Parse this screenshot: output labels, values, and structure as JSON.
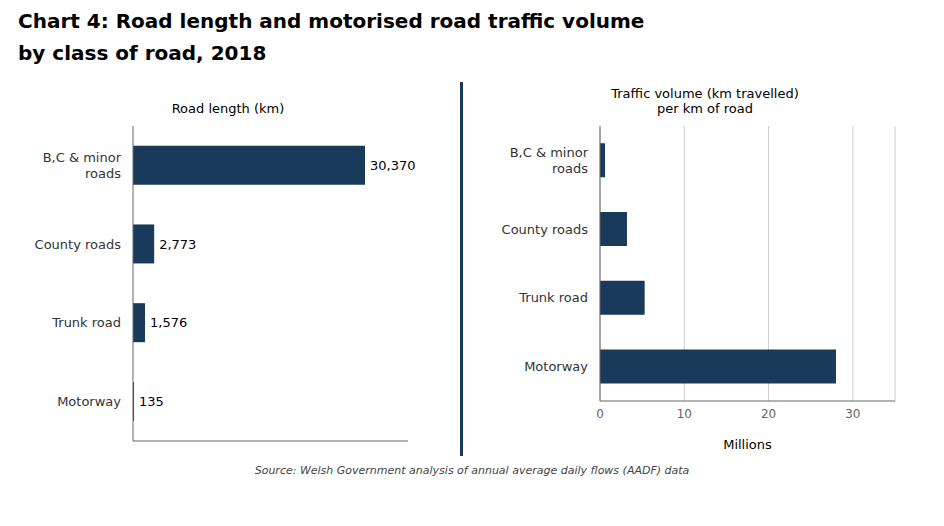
{
  "title": "Chart 4: Road length and motorised road traffic volume",
  "subtitle": "by class of road, 2018",
  "annotations": [
    "Source: Welsh Government analysis of annual average daily flows (AADF) data"
  ],
  "chart_data": [
    {
      "type": "bar",
      "orientation": "horizontal",
      "title": "Road length (km)",
      "categories": [
        "B,C & minor\nroads",
        "County roads",
        "Trunk road",
        "Motorway"
      ],
      "values": [
        30370,
        2773,
        1576,
        135
      ],
      "value_labels": [
        "30,370",
        "2,773",
        "1,576",
        "135"
      ],
      "data_labels": true,
      "color": "#1a3a5c",
      "xlim": [
        0,
        36000
      ],
      "tick_labels": "y",
      "grid": false
    },
    {
      "type": "bar",
      "orientation": "horizontal",
      "title": "Traffic volume (km travelled)\nper km of road",
      "categories": [
        "B,C & minor\nroads",
        "County roads",
        "Trunk road",
        "Motorway"
      ],
      "values": [
        0.6,
        3.2,
        5.3,
        28.0
      ],
      "color": "#1a3a5c",
      "xlabel": "Millions",
      "xlim": [
        0,
        35
      ],
      "xticks": [
        0,
        10,
        20,
        30
      ],
      "grid": true
    }
  ]
}
